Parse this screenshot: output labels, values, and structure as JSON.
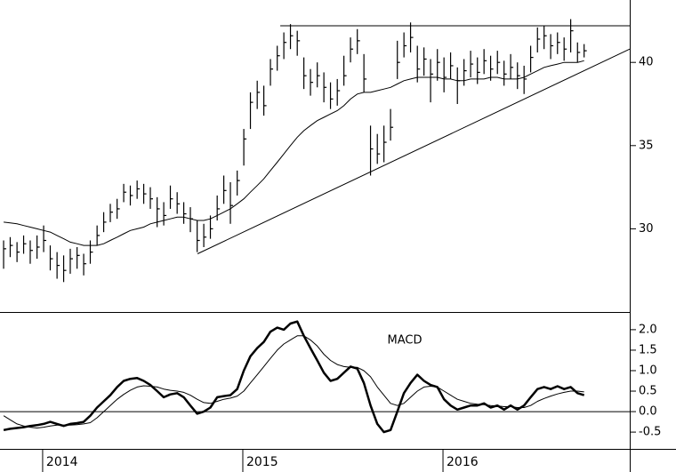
{
  "chart_data": [
    {
      "type": "hlc",
      "x": [
        2013.805,
        2013.838,
        2013.872,
        2013.905,
        2013.938,
        2013.972,
        2014.005,
        2014.038,
        2014.072,
        2014.105,
        2014.138,
        2014.172,
        2014.205,
        2014.238,
        2014.272,
        2014.305,
        2014.338,
        2014.372,
        2014.405,
        2014.438,
        2014.472,
        2014.505,
        2014.538,
        2014.572,
        2014.605,
        2014.638,
        2014.672,
        2014.705,
        2014.738,
        2014.772,
        2014.805,
        2014.838,
        2014.872,
        2014.905,
        2014.938,
        2014.972,
        2015.005,
        2015.038,
        2015.072,
        2015.105,
        2015.138,
        2015.172,
        2015.205,
        2015.238,
        2015.272,
        2015.305,
        2015.338,
        2015.372,
        2015.405,
        2015.438,
        2015.472,
        2015.505,
        2015.538,
        2015.572,
        2015.605,
        2015.638,
        2015.672,
        2015.705,
        2015.738,
        2015.772,
        2015.805,
        2015.838,
        2015.872,
        2015.905,
        2015.938,
        2015.972,
        2016.005,
        2016.038,
        2016.072,
        2016.105,
        2016.138,
        2016.172,
        2016.205,
        2016.238,
        2016.272,
        2016.305,
        2016.338,
        2016.372,
        2016.405,
        2016.438,
        2016.472,
        2016.505,
        2016.538,
        2016.572,
        2016.605,
        2016.638,
        2016.672,
        2016.705
      ],
      "high": [
        29.3,
        29.5,
        29.2,
        29.6,
        29.3,
        29.6,
        30.2,
        29.0,
        28.6,
        28.4,
        28.8,
        28.9,
        28.5,
        29.3,
        30.2,
        31.0,
        31.5,
        31.8,
        32.7,
        32.6,
        32.9,
        32.7,
        32.5,
        31.9,
        31.6,
        32.6,
        32.2,
        31.6,
        31.3,
        30.5,
        30.3,
        30.8,
        32.0,
        33.2,
        32.8,
        33.5,
        36.0,
        38.2,
        38.9,
        38.6,
        40.2,
        41.0,
        41.8,
        42.3,
        41.9,
        40.3,
        39.6,
        40.0,
        39.4,
        38.8,
        39.0,
        40.4,
        41.5,
        42.0,
        40.5,
        36.2,
        35.7,
        36.2,
        37.2,
        41.3,
        41.8,
        42.4,
        41.0,
        40.9,
        40.2,
        40.8,
        40.3,
        40.6,
        39.7,
        40.2,
        40.7,
        40.3,
        40.8,
        40.4,
        40.7,
        40.1,
        40.5,
        40.0,
        39.8,
        41.0,
        42.1,
        42.2,
        41.7,
        41.8,
        41.5,
        42.6,
        41.2,
        41.1
      ],
      "low": [
        27.6,
        28.3,
        28.0,
        28.5,
        27.9,
        28.2,
        28.6,
        27.5,
        27.0,
        26.8,
        27.3,
        27.6,
        27.2,
        27.9,
        29.0,
        29.8,
        30.4,
        30.6,
        31.6,
        31.4,
        31.8,
        31.5,
        31.2,
        30.1,
        30.2,
        31.2,
        30.9,
        30.3,
        29.8,
        28.6,
        28.9,
        29.4,
        30.5,
        31.5,
        30.3,
        32.0,
        33.8,
        36.0,
        37.2,
        36.8,
        38.6,
        39.5,
        40.2,
        40.8,
        40.4,
        38.4,
        38.0,
        38.5,
        37.6,
        37.2,
        37.4,
        38.6,
        40.0,
        40.5,
        38.2,
        33.2,
        33.9,
        34.0,
        35.3,
        39.0,
        40.3,
        40.6,
        38.8,
        39.2,
        37.6,
        38.9,
        38.2,
        39.0,
        37.5,
        38.6,
        39.1,
        38.7,
        39.3,
        38.9,
        39.3,
        38.6,
        39.0,
        38.4,
        38.1,
        39.4,
        40.6,
        40.8,
        40.2,
        40.5,
        40.1,
        40.6,
        40.0,
        40.3
      ],
      "close": [
        28.8,
        29.0,
        28.6,
        29.1,
        28.7,
        28.9,
        29.3,
        28.2,
        27.8,
        27.5,
        28.2,
        28.4,
        27.9,
        28.6,
        29.6,
        30.4,
        31.0,
        31.2,
        32.2,
        32.0,
        32.4,
        32.1,
        31.8,
        31.2,
        30.8,
        31.8,
        31.5,
        30.9,
        30.6,
        29.3,
        29.5,
        30.0,
        31.2,
        32.3,
        31.4,
        32.9,
        35.4,
        37.6,
        38.2,
        37.4,
        39.6,
        40.4,
        41.2,
        41.6,
        41.3,
        39.2,
        38.8,
        39.2,
        38.5,
        37.8,
        38.3,
        39.2,
        40.8,
        41.3,
        39.0,
        34.8,
        34.5,
        35.2,
        36.1,
        40.0,
        41.0,
        41.5,
        39.6,
        40.2,
        39.3,
        40.0,
        39.1,
        39.8,
        38.9,
        39.5,
        39.9,
        39.4,
        40.1,
        39.6,
        40.0,
        39.3,
        39.7,
        39.2,
        39.0,
        40.3,
        41.4,
        41.6,
        41.0,
        41.2,
        40.8,
        41.9,
        40.6,
        40.7
      ],
      "ma": [
        30.4,
        30.35,
        30.3,
        30.2,
        30.1,
        30.0,
        29.9,
        29.8,
        29.6,
        29.4,
        29.2,
        29.1,
        29.0,
        29.0,
        29.0,
        29.1,
        29.3,
        29.5,
        29.7,
        29.9,
        30.0,
        30.1,
        30.3,
        30.4,
        30.5,
        30.6,
        30.7,
        30.7,
        30.6,
        30.5,
        30.5,
        30.6,
        30.8,
        31.0,
        31.2,
        31.5,
        31.8,
        32.2,
        32.6,
        33.0,
        33.5,
        34.0,
        34.5,
        35.0,
        35.5,
        35.9,
        36.2,
        36.5,
        36.7,
        36.9,
        37.1,
        37.4,
        37.8,
        38.1,
        38.2,
        38.2,
        38.3,
        38.4,
        38.5,
        38.7,
        38.9,
        39.0,
        39.1,
        39.1,
        39.1,
        39.1,
        39.0,
        39.0,
        38.9,
        38.9,
        39.0,
        39.0,
        39.0,
        39.1,
        39.1,
        39.0,
        39.0,
        39.0,
        39.1,
        39.3,
        39.5,
        39.7,
        39.8,
        39.9,
        40.0,
        40.0,
        40.0,
        40.1
      ],
      "trendlines": [
        {
          "x": [
            2015.187,
            2016.933
          ],
          "y": [
            42.2,
            42.2
          ]
        },
        {
          "x": [
            2014.774,
            2016.933
          ],
          "y": [
            28.5,
            40.8
          ]
        }
      ],
      "ylim": [
        25,
        43.75
      ],
      "yticks": [
        30,
        35,
        40
      ],
      "color": "#000000"
    },
    {
      "type": "line",
      "annotation": "MACD",
      "xlim": [
        2013.787,
        2016.933
      ],
      "xticks": [
        2014,
        2015,
        2016
      ],
      "series": [
        {
          "width": 2.5,
          "values": [
            -0.45,
            -0.42,
            -0.4,
            -0.38,
            -0.35,
            -0.33,
            -0.3,
            -0.25,
            -0.3,
            -0.35,
            -0.3,
            -0.28,
            -0.25,
            -0.1,
            0.1,
            0.25,
            0.4,
            0.6,
            0.75,
            0.8,
            0.82,
            0.75,
            0.65,
            0.5,
            0.35,
            0.42,
            0.45,
            0.35,
            0.15,
            -0.05,
            0.0,
            0.1,
            0.35,
            0.38,
            0.4,
            0.55,
            1.0,
            1.35,
            1.55,
            1.7,
            1.95,
            2.05,
            2.0,
            2.15,
            2.2,
            1.85,
            1.55,
            1.25,
            0.95,
            0.75,
            0.8,
            0.95,
            1.1,
            1.05,
            0.7,
            0.15,
            -0.3,
            -0.5,
            -0.45,
            0.0,
            0.45,
            0.7,
            0.9,
            0.75,
            0.65,
            0.6,
            0.3,
            0.15,
            0.05,
            0.1,
            0.15,
            0.15,
            0.2,
            0.1,
            0.15,
            0.05,
            0.15,
            0.05,
            0.15,
            0.35,
            0.55,
            0.6,
            0.55,
            0.62,
            0.55,
            0.6,
            0.45,
            0.4
          ]
        },
        {
          "width": 1,
          "values": [
            -0.1,
            -0.2,
            -0.3,
            -0.35,
            -0.38,
            -0.4,
            -0.38,
            -0.35,
            -0.33,
            -0.33,
            -0.33,
            -0.32,
            -0.3,
            -0.27,
            -0.15,
            0.0,
            0.15,
            0.3,
            0.42,
            0.52,
            0.6,
            0.63,
            0.62,
            0.6,
            0.55,
            0.52,
            0.5,
            0.47,
            0.4,
            0.3,
            0.22,
            0.2,
            0.25,
            0.3,
            0.33,
            0.38,
            0.5,
            0.7,
            0.9,
            1.1,
            1.3,
            1.5,
            1.65,
            1.75,
            1.85,
            1.85,
            1.75,
            1.6,
            1.4,
            1.25,
            1.15,
            1.1,
            1.08,
            1.08,
            1.0,
            0.85,
            0.6,
            0.4,
            0.2,
            0.15,
            0.2,
            0.35,
            0.5,
            0.6,
            0.62,
            0.6,
            0.5,
            0.4,
            0.3,
            0.25,
            0.2,
            0.18,
            0.17,
            0.15,
            0.14,
            0.12,
            0.12,
            0.1,
            0.1,
            0.15,
            0.25,
            0.32,
            0.38,
            0.43,
            0.47,
            0.5,
            0.5,
            0.48
          ]
        }
      ],
      "ylim": [
        -0.91,
        2.41
      ],
      "yticks": [
        -0.5,
        {
          "value": 0,
          "label": "0.0"
        },
        0.5,
        {
          "value": 1,
          "label": "1.0"
        },
        1.5,
        {
          "value": 2,
          "label": "2.0"
        }
      ],
      "zero_line": true,
      "color": "#000000"
    }
  ]
}
